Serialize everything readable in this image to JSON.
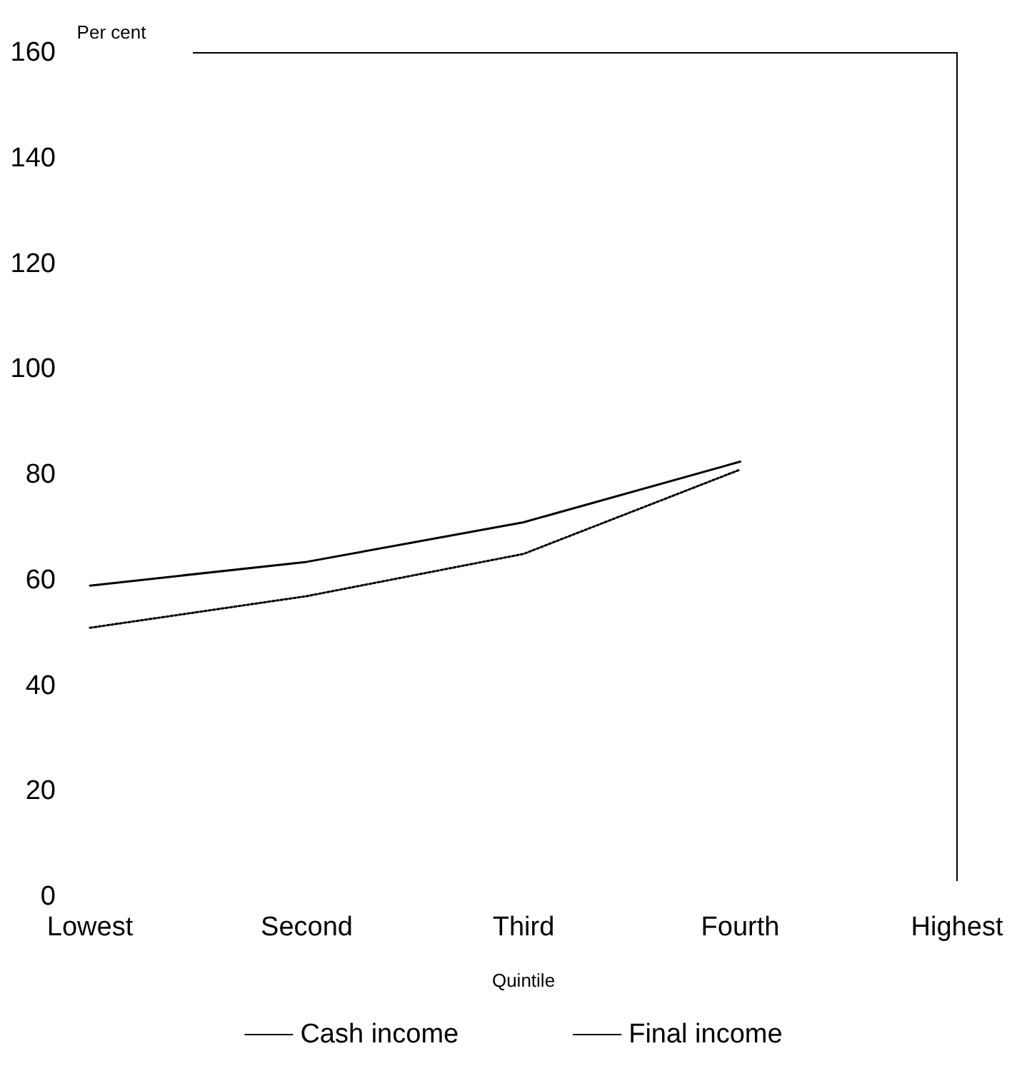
{
  "chart_data": {
    "type": "line",
    "ylabel": "Per cent",
    "xlabel": "Quintile",
    "categories": [
      "Lowest",
      "Second",
      "Third",
      "Fourth",
      "Highest"
    ],
    "series": [
      {
        "name": "Cash income",
        "color": "#000000",
        "line_style": "solid",
        "values": [
          59,
          63.5,
          71,
          82.5,
          null
        ]
      },
      {
        "name": "Final income",
        "color": "#000000",
        "line_style": "dotted",
        "values": [
          51,
          57,
          65,
          81,
          null
        ]
      }
    ],
    "ylim": [
      0,
      160
    ],
    "yticks": [
      0,
      20,
      40,
      60,
      80,
      100,
      120,
      140,
      160
    ],
    "grid": false,
    "legend": "bottom",
    "marker": "none"
  }
}
